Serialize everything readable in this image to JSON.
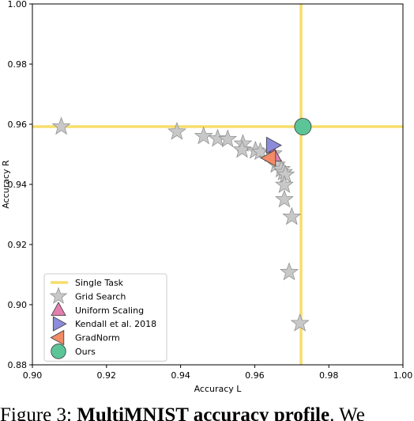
{
  "chart_data": {
    "type": "scatter",
    "xlabel": "Accuracy L",
    "ylabel": "Accuracy R",
    "xlim": [
      0.9,
      1.0
    ],
    "ylim": [
      0.88,
      1.0
    ],
    "xticks": [
      "0.90",
      "0.92",
      "0.94",
      "0.96",
      "0.98",
      "1.00"
    ],
    "yticks": [
      "0.88",
      "0.90",
      "0.92",
      "0.94",
      "0.96",
      "0.98",
      "1.00"
    ],
    "grid": false,
    "legend_position": "lower-left",
    "single_task": {
      "name": "Single Task",
      "x": 0.9725,
      "y": 0.9592,
      "color": "#f7dd6b"
    },
    "series": [
      {
        "name": "Grid Search",
        "marker": "star",
        "color": "#c8c8c8",
        "points": [
          [
            0.9078,
            0.9592
          ],
          [
            0.939,
            0.9575
          ],
          [
            0.9462,
            0.956
          ],
          [
            0.95,
            0.9552
          ],
          [
            0.9527,
            0.955
          ],
          [
            0.9568,
            0.9535
          ],
          [
            0.9566,
            0.9515
          ],
          [
            0.9602,
            0.9512
          ],
          [
            0.9615,
            0.9508
          ],
          [
            0.965,
            0.9502
          ],
          [
            0.9658,
            0.9465
          ],
          [
            0.9672,
            0.945
          ],
          [
            0.9678,
            0.944
          ],
          [
            0.9683,
            0.9432
          ],
          [
            0.968,
            0.9398
          ],
          [
            0.968,
            0.935
          ],
          [
            0.97,
            0.9292
          ],
          [
            0.9693,
            0.9108
          ],
          [
            0.9722,
            0.8938
          ]
        ]
      },
      {
        "name": "Uniform Scaling",
        "marker": "triangle-up",
        "color": "#e17fad",
        "points": [
          [
            0.965,
            0.9498
          ]
        ]
      },
      {
        "name": "Kendall et al. 2018",
        "marker": "triangle-right",
        "color": "#8c8cdb",
        "points": [
          [
            0.9648,
            0.953
          ]
        ]
      },
      {
        "name": "GradNorm",
        "marker": "triangle-left",
        "color": "#f28b66",
        "points": [
          [
            0.964,
            0.9488
          ]
        ]
      },
      {
        "name": "Ours",
        "marker": "circle",
        "color": "#5bc597",
        "points": [
          [
            0.973,
            0.9592
          ]
        ]
      }
    ]
  },
  "caption": {
    "prefix": "Figure 3: ",
    "bold": "MultiMNIST accuracy profile",
    "suffix": ". We"
  }
}
